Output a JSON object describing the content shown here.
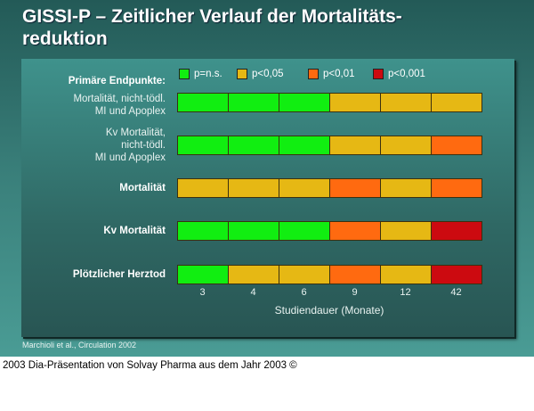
{
  "title_line1": "GISSI-P – Zeitlicher Verlauf der Mortalitäts-",
  "title_line2": "reduktion",
  "source": "Marchioli et al., Circulation 2002",
  "caption": "2003 Dia-Präsentation von Solvay Pharma aus dem Jahr 2003 ©",
  "chart_data": {
    "type": "heatmap",
    "xlabel": "Studiendauer (Monate)",
    "categories": [
      "3",
      "4",
      "6",
      "9",
      "12",
      "42"
    ],
    "legend": [
      {
        "label": "p=n.s.",
        "color": "#11ee11"
      },
      {
        "label": "p<0,05",
        "color": "#e6b814"
      },
      {
        "label": "p<0,01",
        "color": "#ff6a10"
      },
      {
        "label": "p<0,001",
        "color": "#cc0a10"
      }
    ],
    "legend_placement": "top",
    "header": "Primäre Endpunkte:",
    "rows": [
      {
        "label": [
          "Mortalität, nicht-tödl.",
          "MI und Apoplex"
        ],
        "values": [
          "p=n.s.",
          "p=n.s.",
          "p=n.s.",
          "p<0,05",
          "p<0,05",
          "p<0,05"
        ]
      },
      {
        "label": [
          "Kv Mortalität,",
          "nicht-tödl.",
          "MI und Apoplex"
        ],
        "values": [
          "p=n.s.",
          "p=n.s.",
          "p=n.s.",
          "p<0,05",
          "p<0,05",
          "p<0,01"
        ]
      },
      {
        "label": [
          "Mortalität"
        ],
        "bold": true,
        "values": [
          "p<0,05",
          "p<0,05",
          "p<0,05",
          "p<0,01",
          "p<0,05",
          "p<0,01"
        ]
      },
      {
        "label": [
          "Kv Mortalität"
        ],
        "bold": true,
        "values": [
          "p=n.s.",
          "p=n.s.",
          "p=n.s.",
          "p<0,01",
          "p<0,05",
          "p<0,001"
        ]
      },
      {
        "label": [
          "Plötzlicher Herztod"
        ],
        "bold": true,
        "values": [
          "p=n.s.",
          "p<0,05",
          "p<0,05",
          "p<0,01",
          "p<0,05",
          "p<0,001"
        ]
      }
    ]
  }
}
